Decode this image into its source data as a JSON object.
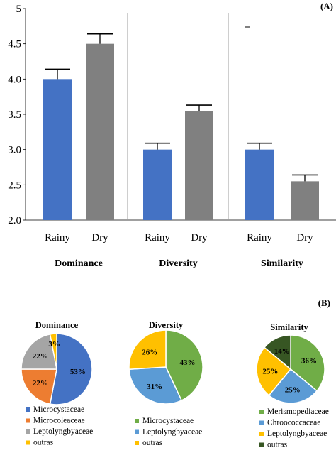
{
  "chart_data": [
    {
      "type": "bar",
      "panel_label": "(A)",
      "ylim": [
        2.0,
        5.0
      ],
      "yticks": [
        "2.0",
        "2.5",
        "3.0",
        "3.5",
        "4.0",
        "4.5",
        "5"
      ],
      "grid": false,
      "groups": [
        {
          "name": "Dominance",
          "categories": [
            "Rainy",
            "Dry"
          ],
          "values": [
            4.0,
            4.5
          ],
          "errors": [
            0.14,
            0.14
          ],
          "colors": [
            "#4472c4",
            "#808080"
          ]
        },
        {
          "name": "Diversity",
          "categories": [
            "Rainy",
            "Dry"
          ],
          "values": [
            3.0,
            3.55
          ],
          "errors": [
            0.09,
            0.08
          ],
          "colors": [
            "#4472c4",
            "#808080"
          ]
        },
        {
          "name": "Similarity",
          "categories": [
            "Rainy",
            "Dry"
          ],
          "values": [
            3.0,
            2.55
          ],
          "errors": [
            0.09,
            0.09
          ],
          "colors": [
            "#4472c4",
            "#808080"
          ]
        }
      ]
    },
    {
      "type": "pie",
      "panel_label": "(B)",
      "title": "Dominance",
      "slices": [
        {
          "label": "Microcystaceae",
          "value": 53,
          "text": "53%",
          "color": "#4472c4"
        },
        {
          "label": "Microcoleaceae",
          "value": 22,
          "text": "22%",
          "color": "#ed7d31"
        },
        {
          "label": "Leptolyngbyaceae",
          "value": 22,
          "text": "22%",
          "color": "#a5a5a5"
        },
        {
          "label": "outras",
          "value": 3,
          "text": "3%",
          "color": "#ffc000"
        }
      ]
    },
    {
      "type": "pie",
      "title": "Diversity",
      "slices": [
        {
          "label": "Microcystaceae",
          "value": 43,
          "text": "43%",
          "color": "#70ad47"
        },
        {
          "label": "Leptolyngbyaceae",
          "value": 31,
          "text": "31%",
          "color": "#5b9bd5"
        },
        {
          "label": "outras",
          "value": 26,
          "text": "26%",
          "color": "#ffc000"
        }
      ]
    },
    {
      "type": "pie",
      "title": "Similarity",
      "slices": [
        {
          "label": "Merismopediaceae",
          "value": 36,
          "text": "36%",
          "color": "#70ad47"
        },
        {
          "label": "Chroococcaceae",
          "value": 25,
          "text": "25%",
          "color": "#5b9bd5"
        },
        {
          "label": "Leptolyngbyaceae",
          "value": 25,
          "text": "25%",
          "color": "#ffc000"
        },
        {
          "label": "outras",
          "value": 14,
          "text": "14%",
          "color": "#375623"
        }
      ]
    }
  ]
}
